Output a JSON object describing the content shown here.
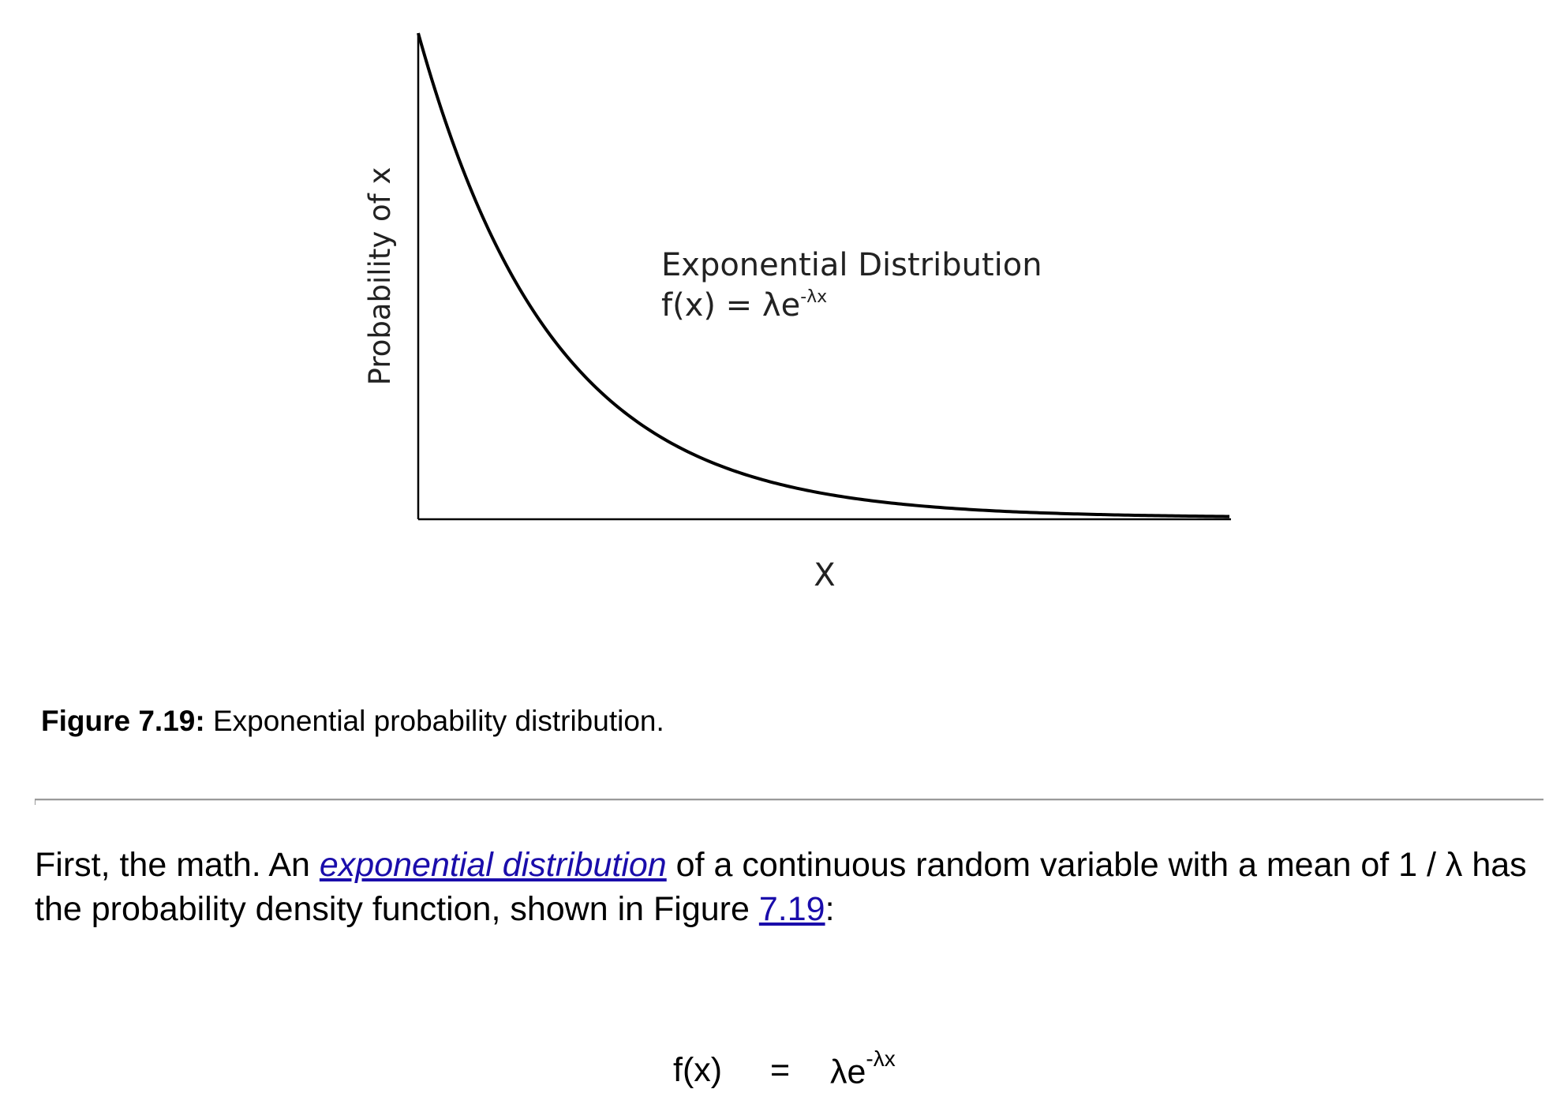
{
  "chart_data": {
    "type": "line",
    "xlabel": "X",
    "ylabel": "Probability of x",
    "annotation": {
      "title": "Exponential Distribution",
      "formula_base": "f(x) = λe",
      "formula_exp": "-λx"
    },
    "grid": false,
    "legend": "none",
    "lambda": 1,
    "xlim": [
      0,
      6
    ],
    "ylim": [
      0,
      1
    ],
    "series": [
      {
        "x": [
          0,
          0.25,
          0.5,
          0.75,
          1,
          1.25,
          1.5,
          1.75,
          2,
          2.5,
          3,
          3.5,
          4,
          4.5,
          5,
          5.5,
          6
        ],
        "y": [
          1,
          0.779,
          0.607,
          0.472,
          0.368,
          0.287,
          0.223,
          0.174,
          0.135,
          0.082,
          0.05,
          0.03,
          0.018,
          0.011,
          0.007,
          0.004,
          0.002
        ]
      }
    ],
    "line_color": "#000000"
  },
  "caption": {
    "label": "Figure 7.19:",
    "text": " Exponential probability distribution."
  },
  "paragraph": {
    "text_before": "First, the math. An ",
    "link_term": "exponential distribution",
    "text_middle": " of a continuous random variable with a mean of 1 / λ has the probability density function, shown in Figure ",
    "link_figure": "7.19",
    "text_after": ":"
  },
  "formula": {
    "lhs": "f(x)",
    "equals": "=",
    "rhs_base": "λe",
    "rhs_exp": "-λx"
  },
  "colors": {
    "link": "#1a0dab",
    "rule": "#9a9a9a"
  }
}
